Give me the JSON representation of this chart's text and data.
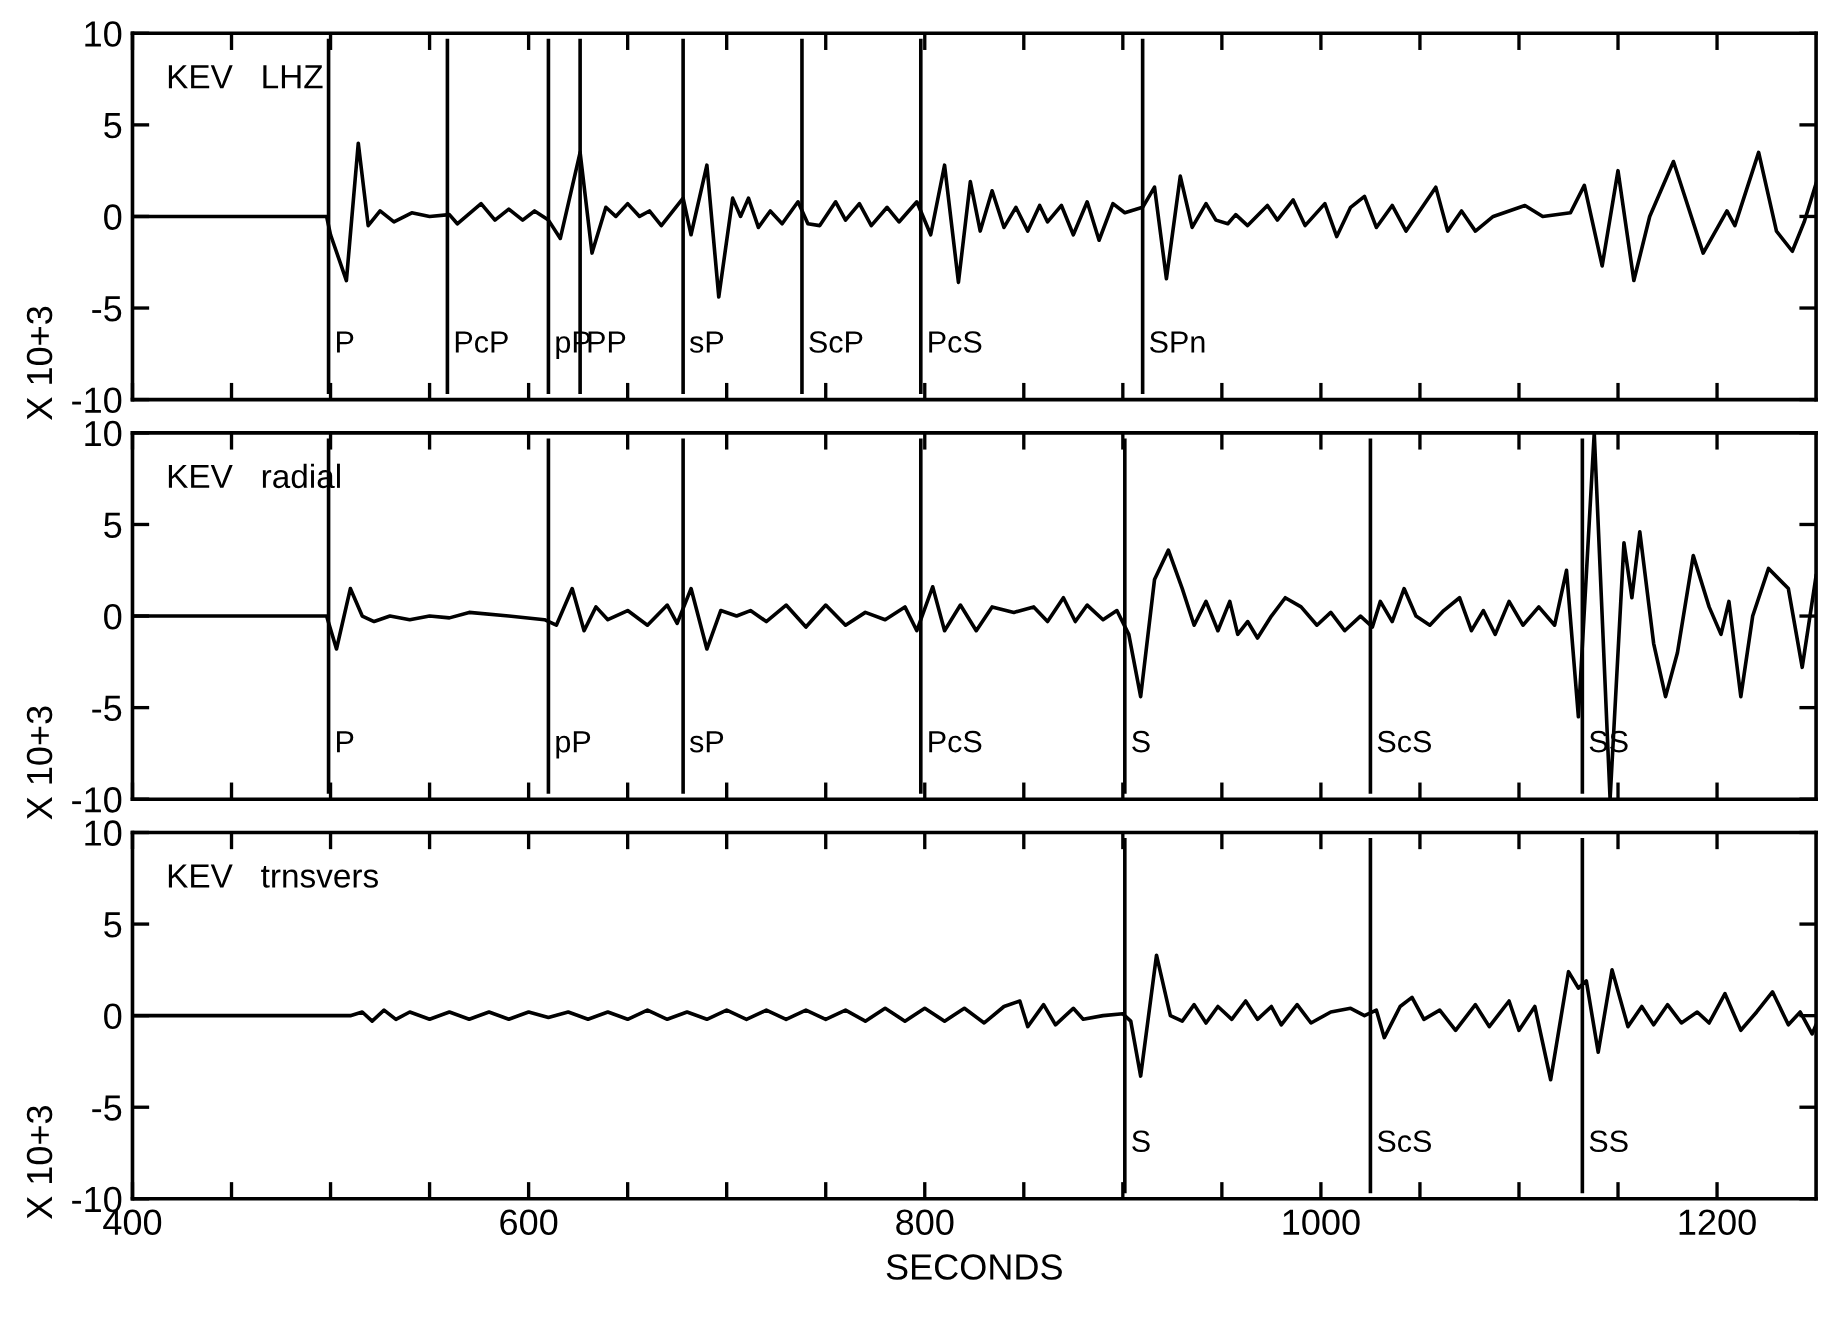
{
  "chart_data": [
    {
      "type": "line",
      "annotations": [
        "KEV   LHZ"
      ],
      "ylabel": "X 10+3",
      "xlim": [
        400,
        1250
      ],
      "ylim": [
        -10,
        10
      ],
      "yticks": [
        -10,
        -5,
        0,
        5,
        10
      ],
      "xticks": [
        400,
        {
          "value": 450,
          "label": null
        },
        {
          "value": 500,
          "label": null
        },
        {
          "value": 550,
          "label": null
        },
        600,
        {
          "value": 650,
          "label": null
        },
        {
          "value": 700,
          "label": null
        },
        {
          "value": 750,
          "label": null
        },
        800,
        {
          "value": 850,
          "label": null
        },
        {
          "value": 900,
          "label": null
        },
        {
          "value": 950,
          "label": null
        },
        1000,
        {
          "value": 1050,
          "label": null
        },
        {
          "value": 1100,
          "label": null
        },
        {
          "value": 1150,
          "label": null
        },
        1200
      ],
      "tick_labels": "y",
      "grid": false,
      "legend": false,
      "ref_lines": [
        {
          "axis": "x",
          "value": 499,
          "label": "P"
        },
        {
          "axis": "x",
          "value": 559,
          "label": "PcP"
        },
        {
          "axis": "x",
          "value": 610,
          "label": "pP"
        },
        {
          "axis": "x",
          "value": 626,
          "label": "PP"
        },
        {
          "axis": "x",
          "value": 678,
          "label": "sP"
        },
        {
          "axis": "x",
          "value": 738,
          "label": "ScP"
        },
        {
          "axis": "x",
          "value": 798,
          "label": "PcS"
        },
        {
          "axis": "x",
          "value": 910,
          "label": "SPn"
        }
      ],
      "series": [
        {
          "color": "#000000",
          "x": [
            400,
            498,
            500,
            508,
            514,
            519,
            525,
            532,
            541,
            550,
            560,
            564,
            576,
            583,
            590,
            597,
            603,
            610,
            616,
            626,
            632,
            639,
            644,
            650,
            656,
            661,
            667,
            678,
            682,
            690,
            696,
            703,
            707,
            711,
            716,
            722,
            728,
            736,
            741,
            747,
            755,
            760,
            767,
            773,
            781,
            787,
            796,
            803,
            810,
            817,
            823,
            828,
            834,
            840,
            846,
            852,
            858,
            862,
            869,
            875,
            882,
            888,
            895,
            901,
            910,
            916,
            922,
            929,
            935,
            942,
            947,
            953,
            957,
            963,
            973,
            978,
            986,
            992,
            1002,
            1008,
            1015,
            1022,
            1028,
            1036,
            1043,
            1058,
            1064,
            1071,
            1078,
            1087,
            1103,
            1112,
            1126,
            1133,
            1142,
            1150,
            1158,
            1166,
            1178,
            1193,
            1205,
            1209,
            1221,
            1230,
            1238,
            1244,
            1250
          ],
          "values": [
            0,
            0,
            -1,
            -3.5,
            4,
            -0.5,
            0.3,
            -0.3,
            0.2,
            0,
            0.1,
            -0.4,
            0.7,
            -0.2,
            0.4,
            -0.2,
            0.3,
            -0.2,
            -1.2,
            3.5,
            -2,
            0.5,
            0,
            0.7,
            0,
            0.3,
            -0.5,
            1,
            -1,
            2.8,
            -4.4,
            1,
            0,
            1,
            -0.6,
            0.3,
            -0.4,
            0.8,
            -0.4,
            -0.5,
            0.8,
            -0.2,
            0.7,
            -0.5,
            0.5,
            -0.3,
            0.8,
            -1,
            2.8,
            -3.6,
            1.9,
            -0.8,
            1.4,
            -0.6,
            0.5,
            -0.8,
            0.6,
            -0.3,
            0.6,
            -1,
            0.8,
            -1.3,
            0.7,
            0.2,
            0.5,
            1.6,
            -3.4,
            2.2,
            -0.6,
            0.7,
            -0.2,
            -0.4,
            0.1,
            -0.5,
            0.6,
            -0.2,
            0.9,
            -0.5,
            0.7,
            -1.1,
            0.5,
            1.1,
            -0.6,
            0.6,
            -0.8,
            1.6,
            -0.8,
            0.3,
            -0.8,
            0,
            0.6,
            0,
            0.2,
            1.7,
            -2.7,
            2.5,
            -3.5,
            0,
            3,
            -2,
            0.3,
            -0.5,
            3.5,
            -0.8,
            -1.9,
            -0.3,
            1.8
          ]
        }
      ]
    },
    {
      "type": "line",
      "annotations": [
        "KEV   radial"
      ],
      "ylabel": "X 10+3",
      "xlim": [
        400,
        1250
      ],
      "ylim": [
        -10,
        10
      ],
      "yticks": [
        -10,
        -5,
        0,
        5,
        10
      ],
      "xticks": [
        400,
        {
          "value": 450,
          "label": null
        },
        {
          "value": 500,
          "label": null
        },
        {
          "value": 550,
          "label": null
        },
        600,
        {
          "value": 650,
          "label": null
        },
        {
          "value": 700,
          "label": null
        },
        {
          "value": 750,
          "label": null
        },
        800,
        {
          "value": 850,
          "label": null
        },
        {
          "value": 900,
          "label": null
        },
        {
          "value": 950,
          "label": null
        },
        1000,
        {
          "value": 1050,
          "label": null
        },
        {
          "value": 1100,
          "label": null
        },
        {
          "value": 1150,
          "label": null
        },
        1200
      ],
      "tick_labels": "y",
      "grid": false,
      "legend": false,
      "ref_lines": [
        {
          "axis": "x",
          "value": 499,
          "label": "P"
        },
        {
          "axis": "x",
          "value": 610,
          "label": "pP"
        },
        {
          "axis": "x",
          "value": 678,
          "label": "sP"
        },
        {
          "axis": "x",
          "value": 798,
          "label": "PcS"
        },
        {
          "axis": "x",
          "value": 901,
          "label": "S"
        },
        {
          "axis": "x",
          "value": 1025,
          "label": "ScS"
        },
        {
          "axis": "x",
          "value": 1132,
          "label": "SS"
        }
      ],
      "series": [
        {
          "color": "#000000",
          "x": [
            400,
            498,
            503,
            510,
            516,
            522,
            530,
            540,
            550,
            560,
            570,
            590,
            608,
            614,
            622,
            628,
            634,
            640,
            650,
            660,
            670,
            675,
            682,
            690,
            697,
            705,
            712,
            720,
            730,
            740,
            750,
            760,
            770,
            780,
            790,
            796,
            804,
            810,
            818,
            826,
            834,
            845,
            855,
            862,
            870,
            876,
            882,
            890,
            897,
            903,
            909,
            916,
            923,
            930,
            936,
            942,
            948,
            954,
            958,
            963,
            968,
            975,
            982,
            990,
            998,
            1005,
            1012,
            1020,
            1026,
            1030,
            1036,
            1042,
            1048,
            1055,
            1062,
            1070,
            1076,
            1082,
            1088,
            1095,
            1102,
            1110,
            1118,
            1124,
            1130,
            1138,
            1146,
            1153,
            1157,
            1161,
            1168,
            1174,
            1180,
            1188,
            1196,
            1202,
            1206,
            1212,
            1218,
            1226,
            1236,
            1243,
            1250
          ],
          "values": [
            0,
            0,
            -1.8,
            1.5,
            0,
            -0.3,
            0,
            -0.2,
            0,
            -0.1,
            0.2,
            0,
            -0.2,
            -0.5,
            1.5,
            -0.8,
            0.5,
            -0.2,
            0.3,
            -0.5,
            0.6,
            -0.4,
            1.5,
            -1.8,
            0.3,
            0,
            0.3,
            -0.3,
            0.6,
            -0.6,
            0.6,
            -0.5,
            0.2,
            -0.2,
            0.5,
            -0.8,
            1.6,
            -0.8,
            0.6,
            -0.8,
            0.5,
            0.2,
            0.5,
            -0.3,
            1,
            -0.3,
            0.6,
            -0.2,
            0.3,
            -1,
            -4.4,
            2,
            3.6,
            1.5,
            -0.5,
            0.8,
            -0.8,
            0.8,
            -1,
            -0.3,
            -1.2,
            0,
            1,
            0.5,
            -0.5,
            0.2,
            -0.8,
            0,
            -0.6,
            0.8,
            -0.3,
            1.5,
            0,
            -0.5,
            0.3,
            1,
            -0.8,
            0.3,
            -1,
            0.8,
            -0.5,
            0.5,
            -0.5,
            2.5,
            -5.5,
            10,
            -10,
            4,
            1,
            4.6,
            -1.5,
            -4.4,
            -2,
            3.3,
            0.5,
            -1,
            0.8,
            -4.4,
            0,
            2.6,
            1.5,
            -2.8,
            2.2
          ]
        }
      ]
    },
    {
      "type": "line",
      "annotations": [
        "KEV   trnsvers"
      ],
      "ylabel": "X 10+3",
      "xlabel": "SECONDS",
      "xlim": [
        400,
        1250
      ],
      "ylim": [
        -10,
        10
      ],
      "yticks": [
        -10,
        -5,
        0,
        5,
        10
      ],
      "xticks": [
        400,
        {
          "value": 450,
          "label": null
        },
        {
          "value": 500,
          "label": null
        },
        {
          "value": 550,
          "label": null
        },
        600,
        {
          "value": 650,
          "label": null
        },
        {
          "value": 700,
          "label": null
        },
        {
          "value": 750,
          "label": null
        },
        800,
        {
          "value": 850,
          "label": null
        },
        {
          "value": 900,
          "label": null
        },
        {
          "value": 950,
          "label": null
        },
        1000,
        {
          "value": 1050,
          "label": null
        },
        {
          "value": 1100,
          "label": null
        },
        {
          "value": 1150,
          "label": null
        },
        1200
      ],
      "grid": false,
      "legend": false,
      "ref_lines": [
        {
          "axis": "x",
          "value": 901,
          "label": "S"
        },
        {
          "axis": "x",
          "value": 1025,
          "label": "ScS"
        },
        {
          "axis": "x",
          "value": 1132,
          "label": "SS"
        }
      ],
      "series": [
        {
          "color": "#000000",
          "x": [
            400,
            510,
            516,
            521,
            527,
            533,
            540,
            550,
            560,
            570,
            580,
            590,
            600,
            610,
            620,
            630,
            640,
            650,
            660,
            670,
            680,
            690,
            700,
            710,
            720,
            730,
            740,
            750,
            760,
            770,
            780,
            790,
            800,
            810,
            820,
            830,
            840,
            848,
            852,
            860,
            866,
            875,
            880,
            890,
            900,
            904,
            909,
            917,
            924,
            930,
            936,
            942,
            948,
            955,
            962,
            968,
            975,
            980,
            988,
            995,
            1005,
            1015,
            1022,
            1028,
            1032,
            1040,
            1046,
            1052,
            1060,
            1068,
            1078,
            1085,
            1095,
            1100,
            1108,
            1116,
            1125,
            1130,
            1134,
            1140,
            1147,
            1155,
            1162,
            1168,
            1175,
            1182,
            1190,
            1196,
            1204,
            1212,
            1220,
            1228,
            1236,
            1242,
            1248,
            1250
          ],
          "values": [
            0,
            0,
            0.2,
            -0.3,
            0.3,
            -0.2,
            0.2,
            -0.2,
            0.2,
            -0.2,
            0.2,
            -0.2,
            0.2,
            -0.1,
            0.2,
            -0.2,
            0.2,
            -0.2,
            0.3,
            -0.2,
            0.2,
            -0.2,
            0.3,
            -0.2,
            0.3,
            -0.2,
            0.3,
            -0.2,
            0.3,
            -0.3,
            0.4,
            -0.3,
            0.4,
            -0.3,
            0.4,
            -0.4,
            0.5,
            0.8,
            -0.6,
            0.6,
            -0.5,
            0.4,
            -0.2,
            0,
            0.1,
            -0.3,
            -3.3,
            3.3,
            0,
            -0.3,
            0.6,
            -0.4,
            0.5,
            -0.2,
            0.8,
            -0.2,
            0.5,
            -0.5,
            0.6,
            -0.4,
            0.2,
            0.4,
            0,
            0.3,
            -1.2,
            0.5,
            1,
            -0.2,
            0.3,
            -0.8,
            0.6,
            -0.6,
            0.8,
            -0.8,
            0.5,
            -3.5,
            2.4,
            1.5,
            1.9,
            -2,
            2.5,
            -0.6,
            0.5,
            -0.5,
            0.6,
            -0.4,
            0.2,
            -0.4,
            1.2,
            -0.8,
            0.2,
            1.3,
            -0.5,
            0.2,
            -1,
            -0.5
          ]
        }
      ]
    }
  ]
}
